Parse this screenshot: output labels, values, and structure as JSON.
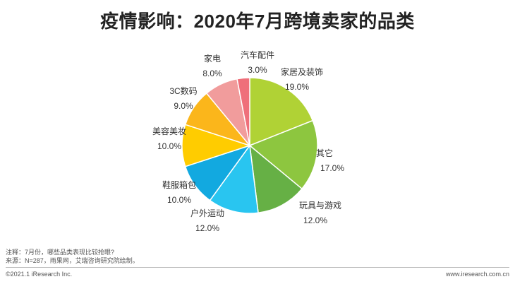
{
  "chart_data": {
    "type": "pie",
    "title": "疫情影响：2020年7月跨境卖家的品类",
    "slices": [
      {
        "label": "家居及装饰",
        "value": 19.0,
        "value_label": "19.0%",
        "color": "#b0d235"
      },
      {
        "label": "其它",
        "value": 17.0,
        "value_label": "17.0%",
        "color": "#8dc63f"
      },
      {
        "label": "玩具与游戏",
        "value": 12.0,
        "value_label": "12.0%",
        "color": "#66b045"
      },
      {
        "label": "户外运动",
        "value": 12.0,
        "value_label": "12.0%",
        "color": "#29c5f0"
      },
      {
        "label": "鞋服箱包",
        "value": 10.0,
        "value_label": "10.0%",
        "color": "#12a9e0"
      },
      {
        "label": "美容美妆",
        "value": 10.0,
        "value_label": "10.0%",
        "color": "#ffcc00"
      },
      {
        "label": "3C数码",
        "value": 9.0,
        "value_label": "9.0%",
        "color": "#fbb61b"
      },
      {
        "label": "家电",
        "value": 8.0,
        "value_label": "8.0%",
        "color": "#f19c9c"
      },
      {
        "label": "汽车配件",
        "value": 3.0,
        "value_label": "3.0%",
        "color": "#ef6f7a"
      }
    ]
  },
  "notes": {
    "line1": "注释：7月份，哪些品类表现比较抢眼?",
    "line2": "来源：N=287，雨果网，艾瑞咨询研究院绘制。"
  },
  "footer": {
    "copyright": "©2021.1 iResearch Inc.",
    "website": "www.iresearch.com.cn"
  }
}
